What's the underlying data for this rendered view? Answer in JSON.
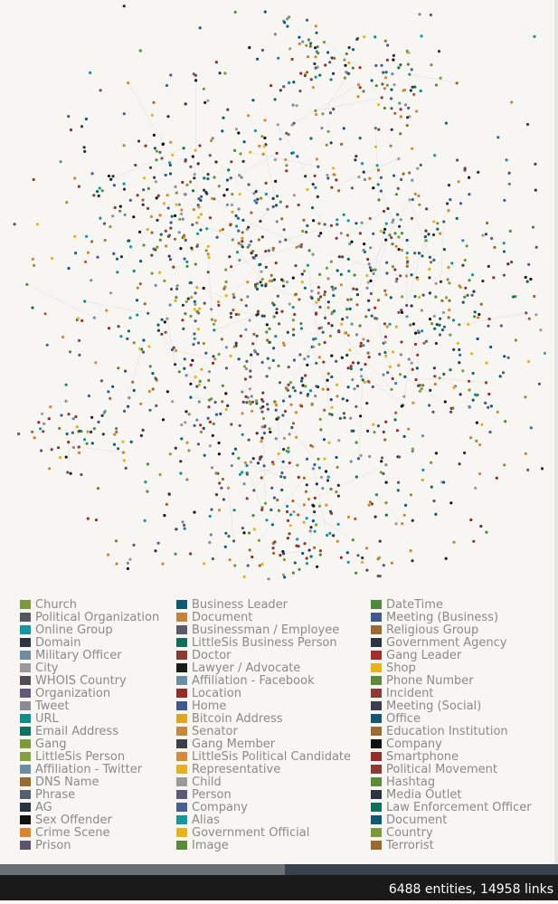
{
  "legend": {
    "items": [
      {
        "label": "Church",
        "color": "#7a9a3a"
      },
      {
        "label": "Political Organization",
        "color": "#55595f"
      },
      {
        "label": "Online Group",
        "color": "#14979e"
      },
      {
        "label": "Domain",
        "color": "#2b3440"
      },
      {
        "label": "Military Officer",
        "color": "#6f8d9c"
      },
      {
        "label": "City",
        "color": "#9a9a9a"
      },
      {
        "label": "WHOIS Country",
        "color": "#4d4f55"
      },
      {
        "label": "Organization",
        "color": "#5f5a78"
      },
      {
        "label": "Tweet",
        "color": "#8a8d92"
      },
      {
        "label": "URL",
        "color": "#0f8d8f"
      },
      {
        "label": "Email Address",
        "color": "#107063"
      },
      {
        "label": "Gang",
        "color": "#7d9b3a"
      },
      {
        "label": "LittleSis Person",
        "color": "#86a03c"
      },
      {
        "label": "Affiliation - Twitter",
        "color": "#6b8fa0"
      },
      {
        "label": "DNS Name",
        "color": "#9a6a30"
      },
      {
        "label": "Phrase",
        "color": "#55606e"
      },
      {
        "label": "AG",
        "color": "#2a3240"
      },
      {
        "label": "Sex Offender",
        "color": "#111111"
      },
      {
        "label": "Crime Scene",
        "color": "#d8882a"
      },
      {
        "label": "Prison",
        "color": "#5b5570"
      },
      {
        "label": "Business Leader",
        "color": "#0f5a78"
      },
      {
        "label": "Document",
        "color": "#c88238"
      },
      {
        "label": "Businessman / Employee",
        "color": "#5a5a6c"
      },
      {
        "label": "LittleSis Business Person",
        "color": "#106e5e"
      },
      {
        "label": "Doctor",
        "color": "#8e3a34"
      },
      {
        "label": "Lawyer / Advocate",
        "color": "#1a1a1a"
      },
      {
        "label": "Affiliation - Facebook",
        "color": "#6a8fa2"
      },
      {
        "label": "Location",
        "color": "#9a2a2a"
      },
      {
        "label": "Home",
        "color": "#3f5a8e"
      },
      {
        "label": "Bitcoin Address",
        "color": "#e0a81e"
      },
      {
        "label": "Senator",
        "color": "#c8883c"
      },
      {
        "label": "Gang Member",
        "color": "#3c3f46"
      },
      {
        "label": "LittleSis Political Candidate",
        "color": "#d88a38"
      },
      {
        "label": "Representative",
        "color": "#e8b020"
      },
      {
        "label": "Child",
        "color": "#9a9a9a"
      },
      {
        "label": "Person",
        "color": "#5c5878"
      },
      {
        "label": "Company",
        "color": "#44608e"
      },
      {
        "label": "Alias",
        "color": "#14979e"
      },
      {
        "label": "Government Official",
        "color": "#e8b418"
      },
      {
        "label": "Image",
        "color": "#5a8a3a"
      },
      {
        "label": "DateTime",
        "color": "#4e8a3e"
      },
      {
        "label": "Meeting (Business)",
        "color": "#3e5a90"
      },
      {
        "label": "Religious Group",
        "color": "#9a6a30"
      },
      {
        "label": "Government Agency",
        "color": "#2c3444"
      },
      {
        "label": "Gang Leader",
        "color": "#a82a2a"
      },
      {
        "label": "Shop",
        "color": "#e8b418"
      },
      {
        "label": "Phone Number",
        "color": "#5a8a3a"
      },
      {
        "label": "Incident",
        "color": "#8e3a34"
      },
      {
        "label": "Meeting (Social)",
        "color": "#3a3e4e"
      },
      {
        "label": "Office",
        "color": "#0e5a74"
      },
      {
        "label": "Education Institution",
        "color": "#9a6a30"
      },
      {
        "label": "Company",
        "color": "#111111"
      },
      {
        "label": "Smartphone",
        "color": "#9a2a2a"
      },
      {
        "label": "Political Movement",
        "color": "#8e3a34"
      },
      {
        "label": "Hashtag",
        "color": "#5a8a3a"
      },
      {
        "label": "Media Outlet",
        "color": "#2c3444"
      },
      {
        "label": "Law Enforcement Officer",
        "color": "#10705e"
      },
      {
        "label": "Document",
        "color": "#0e5a74"
      },
      {
        "label": "Country",
        "color": "#7a9a3a"
      },
      {
        "label": "Terrorist",
        "color": "#9a6a30"
      }
    ]
  },
  "status": "6488 entities, 14958 links"
}
